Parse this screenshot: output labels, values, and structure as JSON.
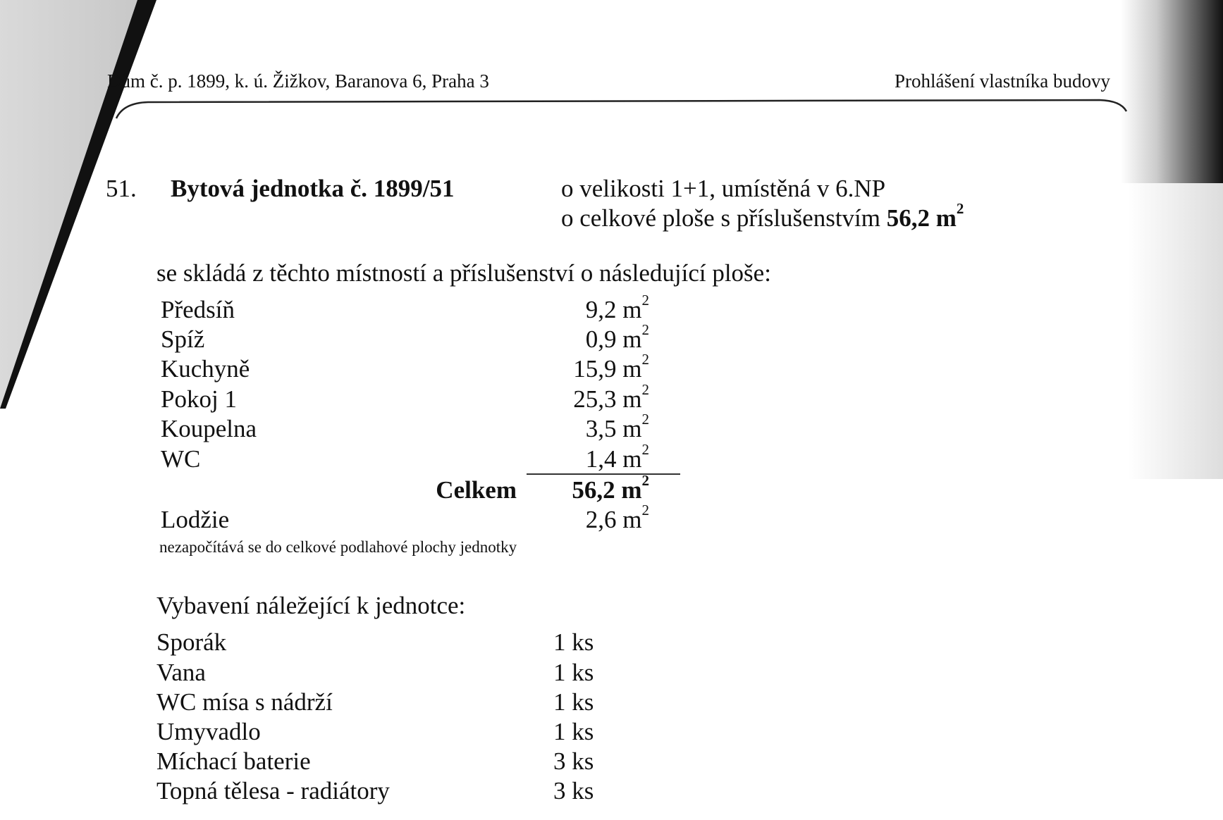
{
  "header": {
    "left": "Dům č. p. 1899, k. ú. Žižkov, Baranova 6, Praha 3",
    "left_visible": "ům č. p. 1899, k. ú. Žižkov, Baranova 6, Praha 3",
    "right": "Prohlášení vlastníka budovy"
  },
  "unit": {
    "number": "51.",
    "title": "Bytová jednotka č. 1899/51",
    "size_line": "o velikosti 1+1, umístěná v 6.NP",
    "area_line": "o celkové ploše s příslušenstvím",
    "area_value": "56,2 m",
    "unit_exp": "2"
  },
  "rooms": {
    "intro": "se skládá z těchto místností a příslušenství o následující ploše:",
    "items": [
      {
        "name": "Předsíň",
        "area": "9,2 m"
      },
      {
        "name": "Spíž",
        "area": "0,9 m"
      },
      {
        "name": "Kuchyně",
        "area": "15,9 m"
      },
      {
        "name": "Pokoj 1",
        "area": "25,3 m"
      },
      {
        "name": "Koupelna",
        "area": "3,5 m"
      },
      {
        "name": "WC",
        "area": "1,4 m"
      }
    ],
    "total_label": "Celkem",
    "total_value": "56,2 m",
    "loggia_name": "Lodžie",
    "loggia_area": "2,6 m",
    "loggia_note": "nezapočítává se do celkové podlahové plochy jednotky"
  },
  "equipment": {
    "intro": "Vybavení náležející k jednotce:",
    "items": [
      {
        "name": "Sporák",
        "qty": "1 ks"
      },
      {
        "name": "Vana",
        "qty": "1 ks"
      },
      {
        "name": "WC mísa s nádrží",
        "qty": "1 ks"
      },
      {
        "name": "Umyvadlo",
        "qty": "1 ks"
      },
      {
        "name": "Míchací baterie",
        "qty": "3 ks"
      },
      {
        "name": "Topná tělesa - radiátory",
        "qty": "3 ks"
      }
    ]
  }
}
